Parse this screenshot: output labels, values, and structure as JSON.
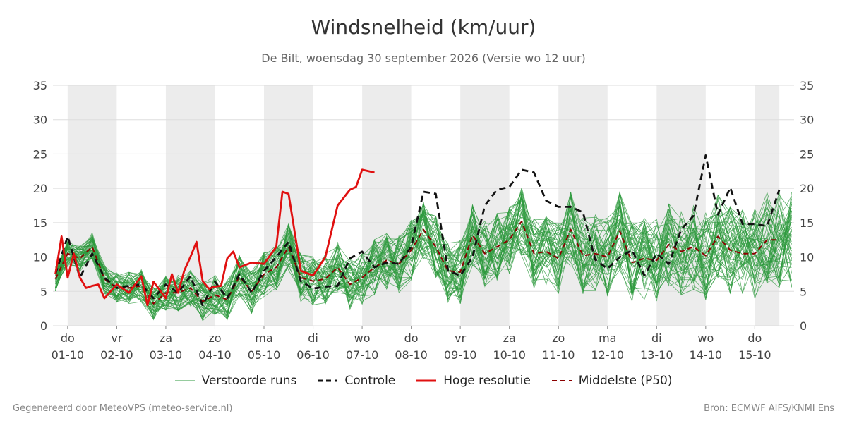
{
  "header": {
    "title": "Windsnelheid (km/uur)",
    "subtitle": "De Bilt, woensdag 30 september 2026 (Versie wo 12 uur)"
  },
  "legend": {
    "perturbed": "Verstoorde runs",
    "control": "Controle",
    "highres": "Hoge resolutie",
    "median": "Middelste (P50)"
  },
  "footer": {
    "left": "Gegenereerd door MeteoVPS (meteo-service.nl)",
    "right": "Bron: ECMWF AIFS/KNMI Ens"
  },
  "colors": {
    "perturbed": "#2e9a3e",
    "control": "#111111",
    "highres": "#e01010",
    "median": "#8b0000",
    "weekend_band": "#ececec",
    "grid": "#dddddd"
  },
  "chart_data": {
    "type": "line",
    "ylim": [
      0,
      35
    ],
    "yticks": [
      0,
      5,
      10,
      15,
      20,
      25,
      30,
      35
    ],
    "x_unit": "days since 30-09 00:00",
    "xlim": [
      0.7,
      15.8
    ],
    "day_ticks": [
      {
        "day": "do",
        "date": "01-10",
        "x": 1
      },
      {
        "day": "vr",
        "date": "02-10",
        "x": 2
      },
      {
        "day": "za",
        "date": "03-10",
        "x": 3
      },
      {
        "day": "zo",
        "date": "04-10",
        "x": 4
      },
      {
        "day": "ma",
        "date": "05-10",
        "x": 5
      },
      {
        "day": "di",
        "date": "06-10",
        "x": 6
      },
      {
        "day": "wo",
        "date": "07-10",
        "x": 7
      },
      {
        "day": "do",
        "date": "08-10",
        "x": 8
      },
      {
        "day": "vr",
        "date": "09-10",
        "x": 9
      },
      {
        "day": "za",
        "date": "10-10",
        "x": 10
      },
      {
        "day": "zo",
        "date": "11-10",
        "x": 11
      },
      {
        "day": "ma",
        "date": "12-10",
        "x": 12
      },
      {
        "day": "di",
        "date": "13-10",
        "x": 13
      },
      {
        "day": "wo",
        "date": "14-10",
        "x": 14
      },
      {
        "day": "do",
        "date": "15-10",
        "x": 15
      }
    ],
    "shaded_bands": [
      [
        1.0,
        2.0
      ],
      [
        3.0,
        4.0
      ],
      [
        5.0,
        6.0
      ],
      [
        7.0,
        8.0
      ],
      [
        9.0,
        10.0
      ],
      [
        11.0,
        12.0
      ],
      [
        13.0,
        14.0
      ],
      [
        15.0,
        15.5
      ]
    ],
    "series": [
      {
        "name": "Hoge resolutie",
        "style": "highres",
        "x": [
          0.75,
          0.875,
          1.0,
          1.125,
          1.25,
          1.375,
          1.5,
          1.625,
          1.75,
          2.0,
          2.25,
          2.5,
          2.625,
          2.75,
          3.0,
          3.125,
          3.25,
          3.375,
          3.5,
          3.625,
          3.75,
          3.875,
          4.0,
          4.125,
          4.25,
          4.375,
          4.5,
          4.75,
          5.0,
          5.25,
          5.375,
          5.5,
          5.75,
          6.0,
          6.25,
          6.5,
          6.75,
          6.875,
          7.0,
          7.25,
          7.5,
          7.75,
          8.0,
          8.25,
          8.5,
          8.75,
          9.0,
          9.25,
          9.5,
          9.75,
          10.0,
          10.25,
          10.5
        ],
        "y": [
          7.5,
          13.0,
          7.0,
          10.5,
          7.0,
          5.5,
          5.8,
          6.0,
          4.0,
          6.0,
          4.8,
          7.2,
          3.0,
          6.4,
          4.0,
          7.5,
          4.8,
          8.0,
          10.0,
          12.2,
          6.5,
          5.4,
          5.7,
          5.8,
          9.8,
          10.8,
          8.5,
          9.2,
          9.0,
          11.5,
          19.5,
          19.2,
          8.0,
          7.3,
          10.0,
          17.5,
          19.8,
          20.2,
          22.7,
          22.3,
          null,
          null,
          null,
          null,
          null,
          null,
          null,
          null,
          null,
          null,
          null,
          null,
          null
        ]
      },
      {
        "name": "Controle",
        "style": "control",
        "x": [
          0.75,
          1.0,
          1.25,
          1.5,
          1.75,
          2.0,
          2.25,
          2.5,
          2.75,
          3.0,
          3.25,
          3.5,
          3.75,
          4.0,
          4.25,
          4.5,
          4.75,
          5.0,
          5.25,
          5.5,
          5.75,
          6.0,
          6.25,
          6.5,
          6.75,
          7.0,
          7.25,
          7.5,
          7.75,
          8.0,
          8.25,
          8.5,
          8.75,
          9.0,
          9.25,
          9.5,
          9.75,
          10.0,
          10.25,
          10.5,
          10.75,
          11.0,
          11.25,
          11.5,
          11.75,
          12.0,
          12.25,
          12.5,
          12.75,
          13.0,
          13.25,
          13.5,
          13.75,
          14.0,
          14.25,
          14.5,
          14.75,
          15.0,
          15.25,
          15.5
        ],
        "y": [
          7.5,
          13.0,
          7.0,
          10.5,
          7.0,
          5.5,
          5.8,
          6.0,
          4.0,
          6.0,
          4.8,
          7.2,
          3.0,
          6.4,
          4.0,
          7.5,
          4.8,
          8.0,
          10.0,
          12.2,
          6.5,
          5.4,
          5.7,
          5.8,
          9.8,
          10.8,
          8.5,
          9.2,
          9.0,
          11.5,
          19.5,
          19.2,
          8.0,
          7.3,
          10.0,
          17.5,
          19.8,
          20.2,
          22.7,
          22.3,
          18.2,
          17.3,
          17.3,
          16.5,
          9.6,
          8.3,
          10.0,
          11.0,
          7.3,
          10.5,
          9.0,
          14.0,
          16.0,
          24.8,
          16.2,
          20.1,
          14.8,
          14.8,
          14.5,
          19.8
        ]
      },
      {
        "name": "Middelste (P50)",
        "style": "median",
        "x": [
          0.75,
          1.0,
          1.25,
          1.5,
          1.75,
          2.0,
          2.25,
          2.5,
          2.75,
          3.0,
          3.25,
          3.5,
          3.75,
          4.0,
          4.25,
          4.5,
          4.75,
          5.0,
          5.25,
          5.5,
          5.75,
          6.0,
          6.25,
          6.5,
          6.75,
          7.0,
          7.25,
          7.5,
          7.75,
          8.0,
          8.25,
          8.5,
          8.75,
          9.0,
          9.25,
          9.5,
          9.75,
          10.0,
          10.25,
          10.5,
          10.75,
          11.0,
          11.25,
          11.5,
          11.75,
          12.0,
          12.25,
          12.5,
          12.75,
          13.0,
          13.25,
          13.5,
          13.75,
          14.0,
          14.25,
          14.5,
          14.75,
          15.0,
          15.25,
          15.5
        ],
        "y": [
          6.8,
          10.5,
          9.8,
          11.5,
          6.8,
          5.5,
          5.5,
          5.8,
          3.2,
          4.8,
          4.8,
          5.5,
          3.5,
          4.5,
          3.8,
          7.2,
          5.0,
          7.5,
          8.5,
          11.5,
          7.0,
          6.5,
          6.8,
          8.5,
          6.0,
          7.0,
          8.5,
          9.5,
          9.0,
          11.0,
          14.0,
          11.5,
          8.0,
          7.8,
          13.2,
          10.5,
          11.5,
          12.5,
          15.2,
          10.5,
          10.8,
          9.8,
          14.0,
          10.2,
          10.5,
          10.0,
          13.8,
          9.2,
          9.8,
          9.5,
          11.8,
          10.8,
          11.5,
          10.2,
          13.0,
          11.0,
          10.5,
          10.5,
          12.5,
          12.5
        ]
      }
    ]
  }
}
